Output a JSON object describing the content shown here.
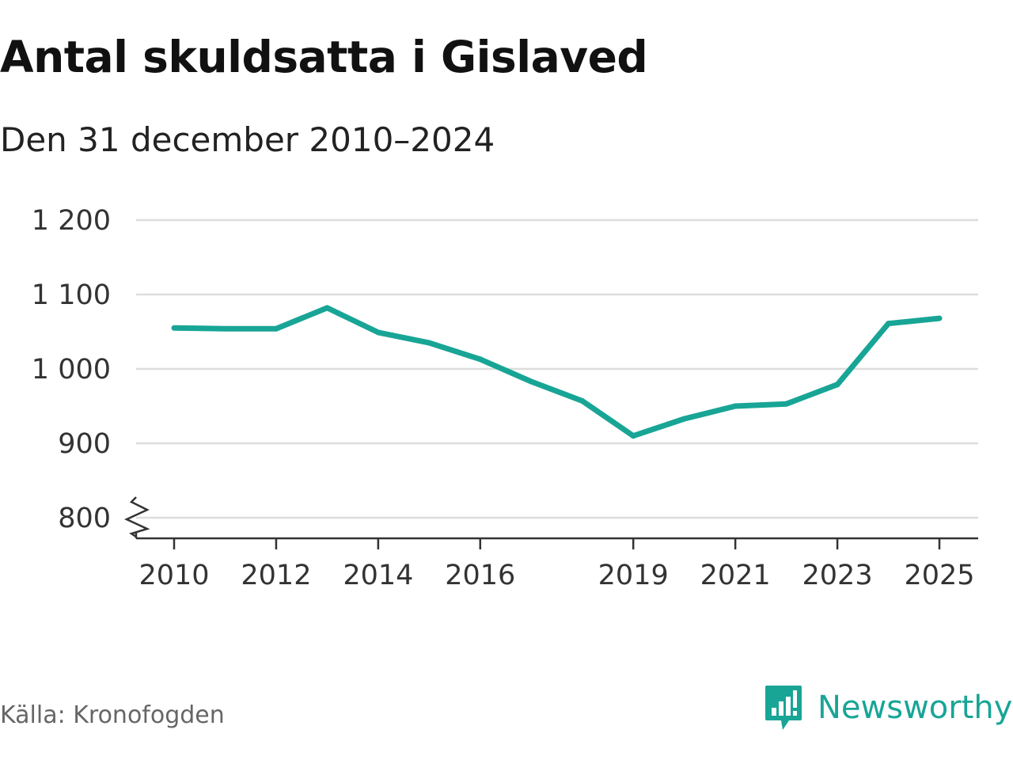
{
  "chart_data": {
    "type": "line",
    "title": "Antal skuldsatta i Gislaved",
    "subtitle": "Den 31 december 2010–2024",
    "xlabel": "",
    "ylabel": "",
    "xlim": [
      2010,
      2025
    ],
    "ylim": [
      800,
      1200
    ],
    "y_axis_break": true,
    "yticks": [
      800,
      900,
      1000,
      1100,
      1200
    ],
    "ytick_labels": [
      "800",
      "900",
      "1 000",
      "1 100",
      "1 200"
    ],
    "xticks": [
      2010,
      2012,
      2014,
      2016,
      2019,
      2021,
      2023,
      2025
    ],
    "xtick_labels": [
      "2010",
      "2012",
      "2014",
      "2016",
      "2019",
      "2021",
      "2023",
      "2025"
    ],
    "grid": true,
    "series": [
      {
        "name": "Antal skuldsatta",
        "color": "#18a596",
        "x": [
          2010.0,
          2011.0,
          2012.0,
          2013.0,
          2014.0,
          2015.0,
          2016.0,
          2017.0,
          2018.0,
          2019.0,
          2020.0,
          2021.0,
          2022.0,
          2023.0,
          2024.0,
          2025.0
        ],
        "values": [
          1055,
          1054,
          1054,
          1082,
          1049,
          1035,
          1013,
          983,
          957,
          910,
          933,
          950,
          953,
          979,
          1061,
          1068
        ]
      }
    ]
  },
  "footer": {
    "source": "Källa: Kronofogden",
    "brand": "Newsworthy",
    "brand_color": "#18a596",
    "logo_icon": "newsworthy-logo-icon"
  }
}
